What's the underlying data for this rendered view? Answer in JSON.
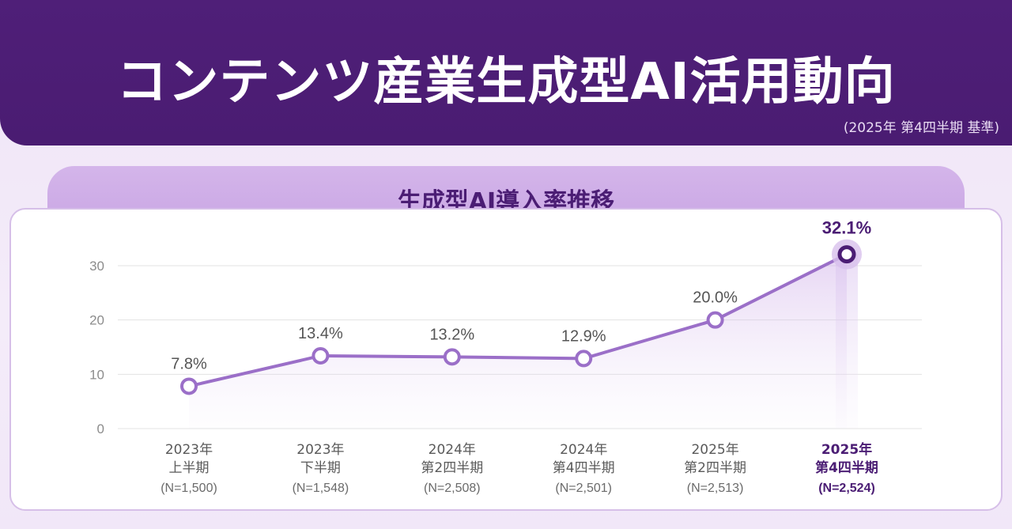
{
  "header": {
    "title": "コンテンツ産業生成型AI活用動向",
    "note": "(2025年 第4四半期 基準)"
  },
  "colors": {
    "banner": "#4f1f78",
    "line": "#9b6fc8",
    "accent": "#4b1d74",
    "subtitle_bar": "#cfaee7"
  },
  "chart_data": {
    "type": "line",
    "title": "生成型AI導入率推移",
    "xlabel": "",
    "ylabel": "",
    "ylim": [
      0,
      30
    ],
    "yticks": [
      0,
      10,
      20,
      30
    ],
    "grid": true,
    "legend": "none",
    "categories": [
      {
        "line1": "2023年",
        "line2": "上半期",
        "n": "(N=1,500)"
      },
      {
        "line1": "2023年",
        "line2": "下半期",
        "n": "(N=1,548)"
      },
      {
        "line1": "2024年",
        "line2": "第2四半期",
        "n": "(N=2,508)"
      },
      {
        "line1": "2024年",
        "line2": "第4四半期",
        "n": "(N=2,501)"
      },
      {
        "line1": "2025年",
        "line2": "第2四半期",
        "n": "(N=2,513)"
      },
      {
        "line1": "2025年",
        "line2": "第4四半期",
        "n": "(N=2,524)"
      }
    ],
    "series": [
      {
        "values": [
          7.8,
          13.4,
          13.2,
          12.9,
          20.0,
          32.1
        ],
        "labels": [
          "7.8%",
          "13.4%",
          "13.2%",
          "12.9%",
          "20.0%",
          "32.1%"
        ]
      }
    ],
    "highlight_index": 5
  }
}
